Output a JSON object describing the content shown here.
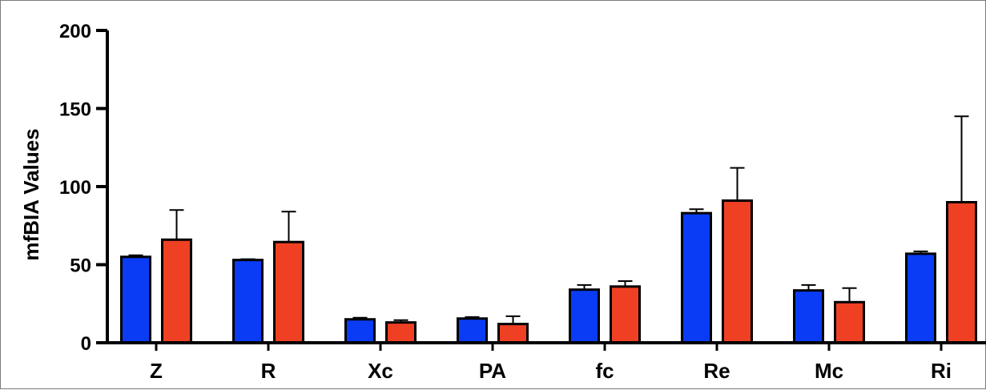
{
  "chart_data": {
    "type": "bar",
    "title": "",
    "xlabel": "",
    "ylabel": "mfBIA Values",
    "ylim": [
      0,
      200
    ],
    "yticks": [
      0,
      50,
      100,
      150,
      200
    ],
    "categories": [
      "Z",
      "R",
      "Xc",
      "PA",
      "fc",
      "Re",
      "Mc",
      "Ri"
    ],
    "series": [
      {
        "color": "#0a3cf5",
        "values": [
          55,
          53,
          15,
          15.5,
          34,
          83,
          33.5,
          57
        ],
        "errors": [
          1,
          0.5,
          1,
          1,
          3,
          2.5,
          3.5,
          1.5
        ]
      },
      {
        "color": "#ef4023",
        "values": [
          66,
          64.5,
          13,
          12,
          36,
          91,
          26,
          90
        ],
        "errors": [
          19,
          19.5,
          1.5,
          5,
          3.5,
          21,
          9,
          55
        ]
      }
    ],
    "grid": false,
    "legend": "none"
  }
}
